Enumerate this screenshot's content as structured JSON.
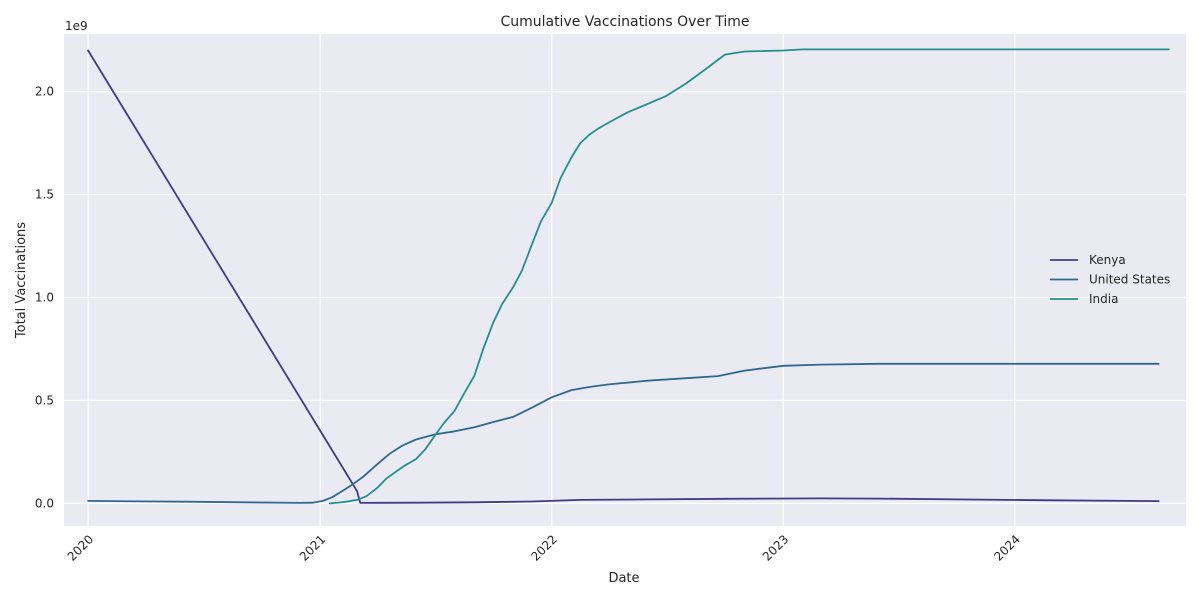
{
  "chart_data": {
    "type": "line",
    "title": "Cumulative Vaccinations Over Time",
    "xlabel": "Date",
    "ylabel": "Total Vaccinations",
    "y_offset_label": "1e9",
    "xlim": [
      "2019-11-24",
      "2024-09-27"
    ],
    "ylim": [
      -0.11,
      2.28
    ],
    "x_ticks": [
      {
        "value": "2020-01-01",
        "label": "2020"
      },
      {
        "value": "2021-01-01",
        "label": "2021"
      },
      {
        "value": "2022-01-01",
        "label": "2022"
      },
      {
        "value": "2023-01-01",
        "label": "2023"
      },
      {
        "value": "2024-01-01",
        "label": "2024"
      }
    ],
    "y_ticks": [
      {
        "value": 0.0,
        "label": "0.0"
      },
      {
        "value": 0.5,
        "label": "0.5"
      },
      {
        "value": 1.0,
        "label": "1.0"
      },
      {
        "value": 1.5,
        "label": "1.5"
      },
      {
        "value": 2.0,
        "label": "2.0"
      }
    ],
    "grid": true,
    "legend_position": "center-right",
    "background": "#eaeaf2",
    "series": [
      {
        "name": "Kenya",
        "color": "#443983",
        "points": [
          [
            "2020-01-01",
            2.2
          ],
          [
            "2021-02-28",
            0.06
          ],
          [
            "2021-03-05",
            0.002
          ],
          [
            "2021-06-01",
            0.003
          ],
          [
            "2021-09-01",
            0.005
          ],
          [
            "2021-12-01",
            0.009
          ],
          [
            "2022-02-15",
            0.017
          ],
          [
            "2022-06-01",
            0.019
          ],
          [
            "2022-10-01",
            0.022
          ],
          [
            "2023-03-01",
            0.024
          ],
          [
            "2023-06-01",
            0.023
          ],
          [
            "2023-10-01",
            0.019
          ],
          [
            "2024-03-01",
            0.015
          ],
          [
            "2024-08-15",
            0.011
          ]
        ]
      },
      {
        "name": "United States",
        "color": "#31688e",
        "points": [
          [
            "2020-01-01",
            0.012
          ],
          [
            "2020-06-01",
            0.008
          ],
          [
            "2020-12-01",
            0.002
          ],
          [
            "2020-12-20",
            0.003
          ],
          [
            "2021-01-05",
            0.012
          ],
          [
            "2021-01-20",
            0.03
          ],
          [
            "2021-02-05",
            0.06
          ],
          [
            "2021-02-20",
            0.09
          ],
          [
            "2021-03-10",
            0.13
          ],
          [
            "2021-04-01",
            0.19
          ],
          [
            "2021-04-20",
            0.24
          ],
          [
            "2021-05-10",
            0.28
          ],
          [
            "2021-06-01",
            0.31
          ],
          [
            "2021-07-01",
            0.335
          ],
          [
            "2021-08-01",
            0.35
          ],
          [
            "2021-09-01",
            0.37
          ],
          [
            "2021-10-01",
            0.395
          ],
          [
            "2021-11-01",
            0.42
          ],
          [
            "2021-12-01",
            0.465
          ],
          [
            "2022-01-01",
            0.515
          ],
          [
            "2022-02-01",
            0.55
          ],
          [
            "2022-03-01",
            0.565
          ],
          [
            "2022-04-01",
            0.578
          ],
          [
            "2022-06-01",
            0.596
          ],
          [
            "2022-08-01",
            0.608
          ],
          [
            "2022-09-20",
            0.618
          ],
          [
            "2022-11-01",
            0.645
          ],
          [
            "2023-01-01",
            0.668
          ],
          [
            "2023-03-01",
            0.674
          ],
          [
            "2023-06-01",
            0.678
          ],
          [
            "2024-01-01",
            0.678
          ],
          [
            "2024-08-15",
            0.678
          ]
        ]
      },
      {
        "name": "India",
        "color": "#21918c",
        "points": [
          [
            "2021-01-16",
            0.0
          ],
          [
            "2021-02-01",
            0.004
          ],
          [
            "2021-02-15",
            0.01
          ],
          [
            "2021-03-01",
            0.018
          ],
          [
            "2021-03-15",
            0.035
          ],
          [
            "2021-04-01",
            0.075
          ],
          [
            "2021-04-15",
            0.12
          ],
          [
            "2021-05-01",
            0.155
          ],
          [
            "2021-05-15",
            0.185
          ],
          [
            "2021-06-01",
            0.215
          ],
          [
            "2021-06-15",
            0.26
          ],
          [
            "2021-07-01",
            0.33
          ],
          [
            "2021-07-15",
            0.39
          ],
          [
            "2021-08-01",
            0.45
          ],
          [
            "2021-08-15",
            0.53
          ],
          [
            "2021-09-01",
            0.62
          ],
          [
            "2021-09-15",
            0.75
          ],
          [
            "2021-10-01",
            0.88
          ],
          [
            "2021-10-15",
            0.97
          ],
          [
            "2021-11-01",
            1.05
          ],
          [
            "2021-11-15",
            1.13
          ],
          [
            "2021-12-01",
            1.26
          ],
          [
            "2021-12-15",
            1.37
          ],
          [
            "2022-01-01",
            1.46
          ],
          [
            "2022-01-15",
            1.58
          ],
          [
            "2022-02-01",
            1.68
          ],
          [
            "2022-02-15",
            1.75
          ],
          [
            "2022-03-01",
            1.79
          ],
          [
            "2022-03-15",
            1.82
          ],
          [
            "2022-04-01",
            1.85
          ],
          [
            "2022-05-01",
            1.9
          ],
          [
            "2022-06-01",
            1.94
          ],
          [
            "2022-07-01",
            1.98
          ],
          [
            "2022-08-01",
            2.04
          ],
          [
            "2022-09-01",
            2.11
          ],
          [
            "2022-10-01",
            2.18
          ],
          [
            "2022-11-01",
            2.195
          ],
          [
            "2023-01-01",
            2.2
          ],
          [
            "2023-02-01",
            2.205
          ],
          [
            "2023-06-01",
            2.205
          ],
          [
            "2024-01-01",
            2.205
          ],
          [
            "2024-08-31",
            2.205
          ]
        ]
      }
    ]
  }
}
